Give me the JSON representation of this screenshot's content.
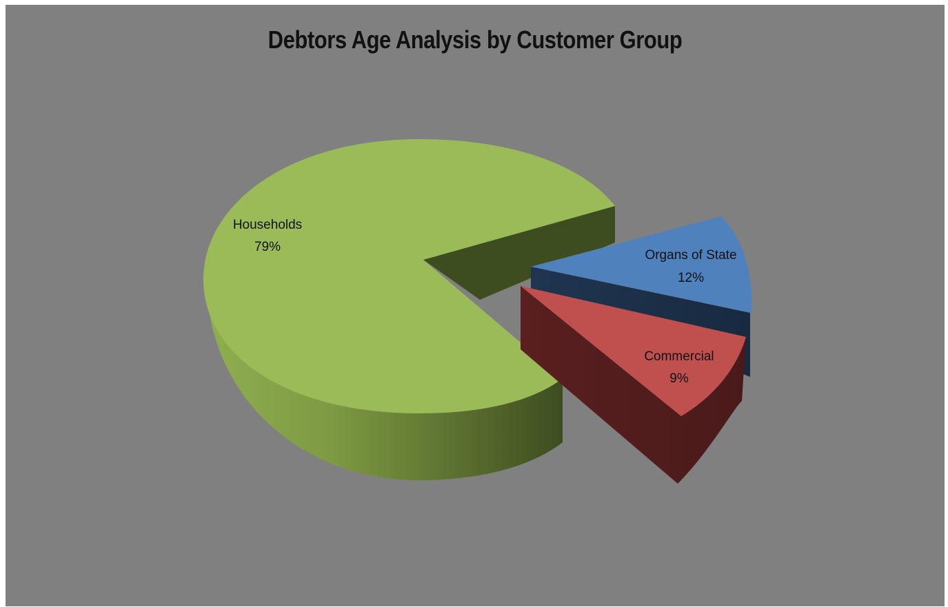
{
  "chart_data": {
    "type": "pie",
    "title": "Debtors Age Analysis by Customer Group",
    "slices": [
      {
        "label": "Households",
        "value": 79,
        "display": "79%",
        "color": "#9bbb59",
        "side_color": "#4f6228"
      },
      {
        "label": "Organs of State",
        "value": 12,
        "display": "12%",
        "color": "#4f81bd",
        "side_color": "#1f3550"
      },
      {
        "label": "Commercial",
        "value": 9,
        "display": "9%",
        "color": "#c0504d",
        "side_color": "#4f1c1c"
      }
    ],
    "background": "#808080",
    "style": "3d-exploded"
  }
}
